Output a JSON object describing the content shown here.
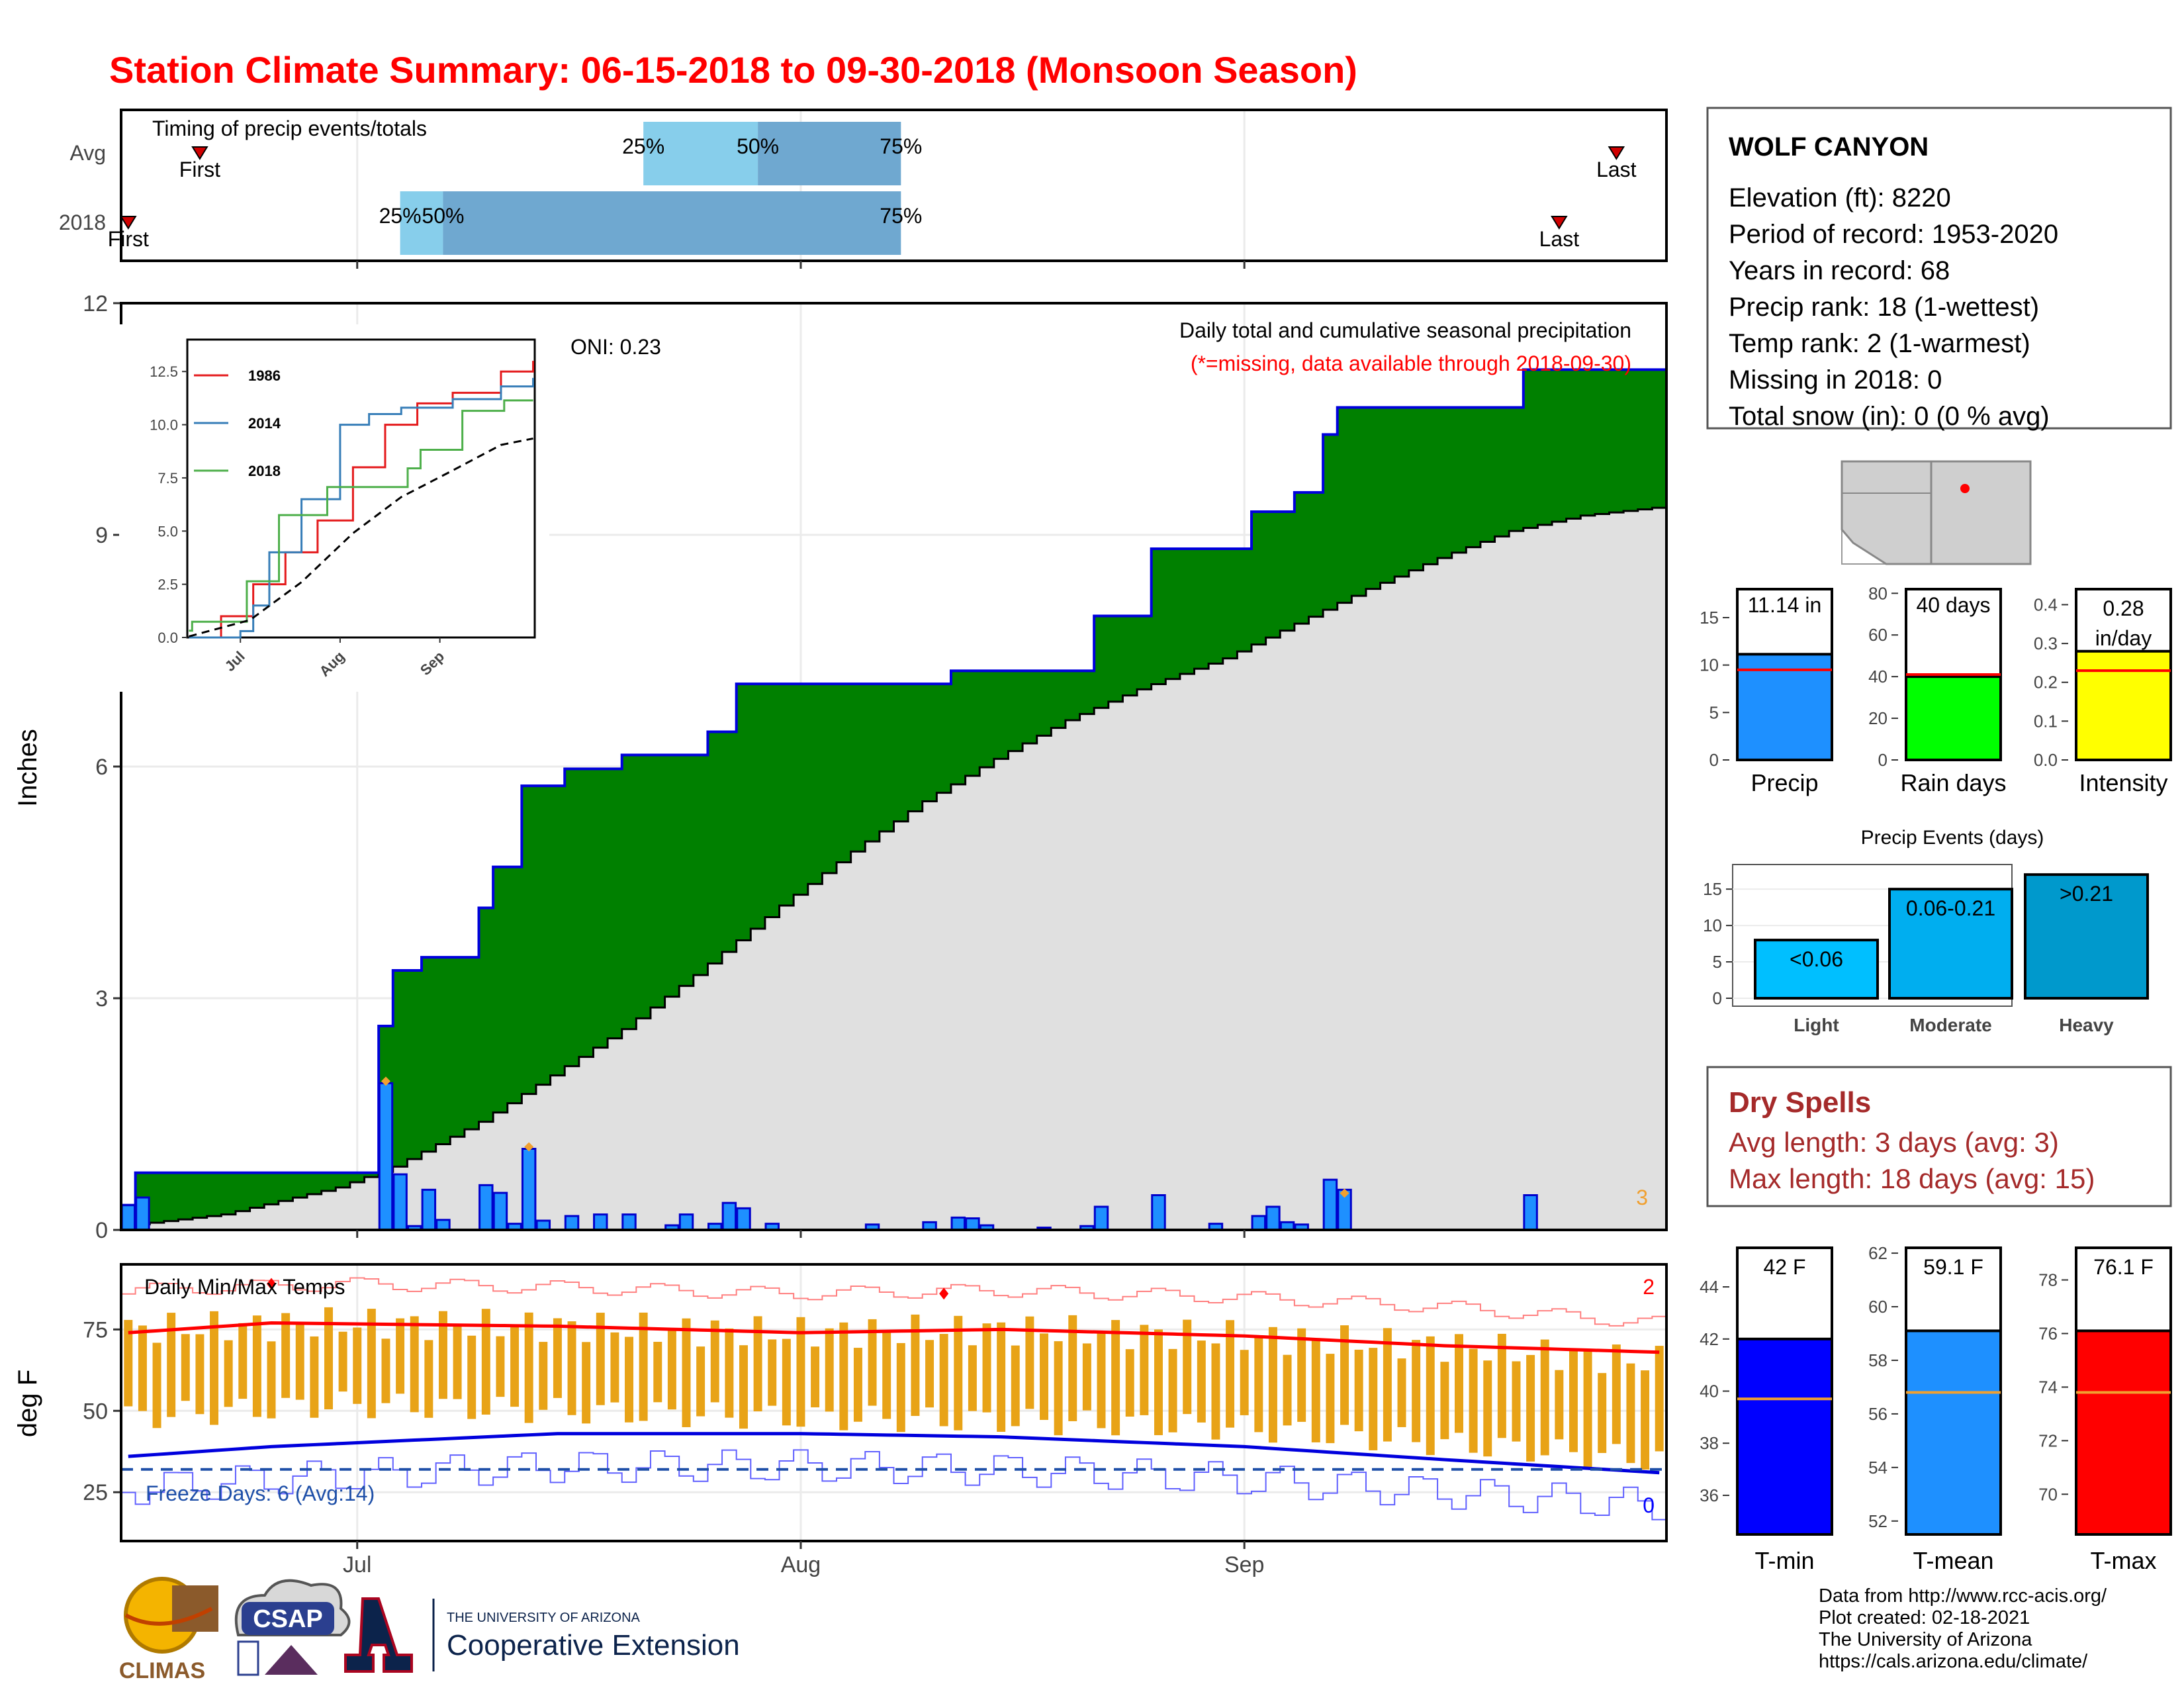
{
  "title": "Station Climate Summary: 06-15-2018 to 09-30-2018 (Monsoon Season)",
  "colors": {
    "title": "#ff0000",
    "green": "#008000",
    "bar": "#1e90ff",
    "gray": "#e0e0e0",
    "orange": "#e8a317",
    "dryspell": "#a52a2a",
    "light_blue": "#87ceeb",
    "mid_blue": "#6fa8d0"
  },
  "timing": {
    "label": "Timing of precip events/totals",
    "rows": [
      {
        "name": "Avg",
        "first_label": "First",
        "last_label": "Last",
        "p25": "25%",
        "p50": "50%",
        "p75": "75%",
        "first": "2018-06-20",
        "d25": "2018-07-21",
        "d50": "2018-07-29",
        "d75": "2018-08-08",
        "last": "2018-09-27"
      },
      {
        "name": "2018",
        "first_label": "First",
        "last_label": "Last",
        "p25": "25%",
        "p50": "50%",
        "p75": "75%",
        "first": "2018-06-15",
        "d25": "2018-07-04",
        "d50": "2018-07-07",
        "d75": "2018-08-08",
        "last": "2018-09-23"
      }
    ]
  },
  "x_axis": {
    "ticks": [
      "Jul",
      "Aug",
      "Sep"
    ]
  },
  "precip_panel": {
    "ylabel": "Inches",
    "annotation": "Daily total and cumulative seasonal precipitation",
    "missing_note": "(*=missing, data available through 2018-09-30)",
    "oni": "ONI: 0.23",
    "corner_count": "3"
  },
  "inset": {
    "y_ticks": [
      "0.0",
      "2.5",
      "5.0",
      "7.5",
      "10.0",
      "12.5"
    ],
    "x_ticks": [
      "Jul",
      "Aug",
      "Sep"
    ],
    "legend": [
      {
        "name": "1986",
        "color": "#e41a1c"
      },
      {
        "name": "2014",
        "color": "#377eb8"
      },
      {
        "name": "2018",
        "color": "#4daf4a"
      }
    ]
  },
  "temp_panel": {
    "ylabel": "deg F",
    "label": "Daily Min/Max Temps",
    "freeze": "Freeze Days: 6 (Avg:14)",
    "corner_max": "2",
    "corner_min": "0"
  },
  "station": {
    "name": "WOLF CANYON",
    "lines": [
      "Elevation (ft): 8220",
      "Period of record: 1953-2020",
      "Years in record: 68",
      "Precip rank: 18 (1-wettest)",
      "Temp rank: 2 (1-warmest)",
      "Missing in 2018: 0",
      "Total snow (in): 0 (0 % avg)"
    ]
  },
  "summary_bars": [
    {
      "label": "Precip",
      "value_text": "11.14 in",
      "color": "#1e90ff",
      "value": 11.14,
      "avg": 9.5,
      "ymax": 18,
      "ticks": [
        "0",
        "5",
        "10",
        "15"
      ]
    },
    {
      "label": "Rain days",
      "value_text": "40 days",
      "color": "#00ff00",
      "value": 40,
      "avg": 41,
      "ymax": 82,
      "ticks": [
        "0",
        "20",
        "40",
        "60",
        "80"
      ]
    },
    {
      "label": "Intensity",
      "value_text": "0.28 in/day",
      "color": "#ffff00",
      "value": 0.28,
      "avg": 0.23,
      "ymax": 0.44,
      "ticks": [
        "0.0",
        "0.1",
        "0.2",
        "0.3",
        "0.4"
      ]
    }
  ],
  "precip_events": {
    "title": "Precip Events (days)",
    "ticks": [
      "0",
      "5",
      "10",
      "15"
    ],
    "bars": [
      {
        "category": "Light",
        "label": "<0.06",
        "value": 8,
        "color": "#00bfff"
      },
      {
        "category": "Moderate",
        "label": "0.06-0.21",
        "value": 15,
        "color": "#00aeef"
      },
      {
        "category": "Heavy",
        "label": ">0.21",
        "value": 17,
        "color": "#0099cc"
      }
    ]
  },
  "dry_spells": {
    "title": "Dry Spells",
    "avg_line": "Avg length: 3 days (avg: 3)",
    "max_line": "Max length: 18 days (avg: 15)"
  },
  "temp_bars": [
    {
      "label": "T-min",
      "value_text": "42 F",
      "color": "#0000ff",
      "value": 42,
      "avg": 39.7,
      "ymin": 34.5,
      "ymax": 45.5,
      "ticks": [
        "36",
        "38",
        "40",
        "42",
        "44"
      ]
    },
    {
      "label": "T-mean",
      "value_text": "59.1 F",
      "color": "#1e90ff",
      "value": 59.1,
      "avg": 56.8,
      "ymin": 51.5,
      "ymax": 62.2,
      "ticks": [
        "52",
        "54",
        "56",
        "58",
        "60",
        "62"
      ]
    },
    {
      "label": "T-max",
      "value_text": "76.1 F",
      "color": "#ff0000",
      "value": 76.1,
      "avg": 73.8,
      "ymin": 68.5,
      "ymax": 79.2,
      "ticks": [
        "70",
        "72",
        "74",
        "76",
        "78"
      ]
    }
  ],
  "credits": [
    "Data from http://www.rcc-acis.org/",
    "Plot created: 02-18-2021",
    "The University of Arizona",
    "https://cals.arizona.edu/climate/"
  ],
  "logos": {
    "climas": "CLIMAS",
    "csap": "CSAP",
    "uofa_small": "THE UNIVERSITY OF ARIZONA",
    "uofa_big": "Cooperative Extension"
  },
  "chart_data": {
    "type": "bar",
    "title": "Station Climate Summary: 06-15-2018 to 09-30-2018 (Monsoon Season)",
    "ylabel": "Inches",
    "ylim": [
      0,
      12
    ],
    "xlim": [
      "2018-06-15",
      "2018-09-30"
    ],
    "series": [
      {
        "name": "Daily precip",
        "points": [
          [
            "2018-06-15",
            0.32
          ],
          [
            "2018-06-16",
            0.42
          ],
          [
            "2018-07-03",
            1.9
          ],
          [
            "2018-07-04",
            0.72
          ],
          [
            "2018-07-05",
            0.05
          ],
          [
            "2018-07-06",
            0.52
          ],
          [
            "2018-07-07",
            0.13
          ],
          [
            "2018-07-10",
            0.58
          ],
          [
            "2018-07-11",
            0.48
          ],
          [
            "2018-07-12",
            0.08
          ],
          [
            "2018-07-13",
            1.05
          ],
          [
            "2018-07-14",
            0.12
          ],
          [
            "2018-07-16",
            0.18
          ],
          [
            "2018-07-18",
            0.2
          ],
          [
            "2018-07-20",
            0.2
          ],
          [
            "2018-07-23",
            0.06
          ],
          [
            "2018-07-24",
            0.2
          ],
          [
            "2018-07-26",
            0.08
          ],
          [
            "2018-07-27",
            0.35
          ],
          [
            "2018-07-28",
            0.28
          ],
          [
            "2018-07-30",
            0.08
          ],
          [
            "2018-08-06",
            0.07
          ],
          [
            "2018-08-10",
            0.1
          ],
          [
            "2018-08-12",
            0.16
          ],
          [
            "2018-08-13",
            0.15
          ],
          [
            "2018-08-14",
            0.06
          ],
          [
            "2018-08-18",
            0.03
          ],
          [
            "2018-08-21",
            0.05
          ],
          [
            "2018-08-22",
            0.3
          ],
          [
            "2018-08-26",
            0.45
          ],
          [
            "2018-08-30",
            0.08
          ],
          [
            "2018-09-02",
            0.18
          ],
          [
            "2018-09-03",
            0.3
          ],
          [
            "2018-09-04",
            0.1
          ],
          [
            "2018-09-05",
            0.07
          ],
          [
            "2018-09-07",
            0.65
          ],
          [
            "2018-09-08",
            0.52
          ],
          [
            "2018-09-21",
            0.45
          ]
        ]
      },
      {
        "name": "Cumulative 2018",
        "points": [
          [
            "2018-06-15",
            0.32
          ],
          [
            "2018-06-16",
            0.74
          ],
          [
            "2018-07-03",
            2.64
          ],
          [
            "2018-07-04",
            3.36
          ],
          [
            "2018-07-06",
            3.53
          ],
          [
            "2018-07-10",
            4.17
          ],
          [
            "2018-07-11",
            4.7
          ],
          [
            "2018-07-13",
            5.75
          ],
          [
            "2018-07-16",
            5.97
          ],
          [
            "2018-07-20",
            6.15
          ],
          [
            "2018-07-26",
            6.45
          ],
          [
            "2018-07-28",
            7.07
          ],
          [
            "2018-08-12",
            7.24
          ],
          [
            "2018-08-22",
            7.95
          ],
          [
            "2018-08-26",
            8.82
          ],
          [
            "2018-09-02",
            9.3
          ],
          [
            "2018-09-05",
            9.55
          ],
          [
            "2018-09-07",
            10.3
          ],
          [
            "2018-09-08",
            10.65
          ],
          [
            "2018-09-21",
            11.14
          ],
          [
            "2018-09-30",
            11.14
          ]
        ]
      },
      {
        "name": "Cumulative average",
        "points": [
          [
            "2018-06-15",
            0.05
          ],
          [
            "2018-06-22",
            0.2
          ],
          [
            "2018-06-30",
            0.55
          ],
          [
            "2018-07-04",
            0.82
          ],
          [
            "2018-07-10",
            1.4
          ],
          [
            "2018-07-15",
            2.0
          ],
          [
            "2018-07-20",
            2.6
          ],
          [
            "2018-07-25",
            3.3
          ],
          [
            "2018-07-31",
            4.2
          ],
          [
            "2018-08-05",
            4.9
          ],
          [
            "2018-08-10",
            5.55
          ],
          [
            "2018-08-15",
            6.1
          ],
          [
            "2018-08-20",
            6.6
          ],
          [
            "2018-08-25",
            7.0
          ],
          [
            "2018-08-31",
            7.4
          ],
          [
            "2018-09-05",
            7.85
          ],
          [
            "2018-09-10",
            8.3
          ],
          [
            "2018-09-15",
            8.7
          ],
          [
            "2018-09-20",
            9.05
          ],
          [
            "2018-09-25",
            9.25
          ],
          [
            "2018-09-30",
            9.35
          ]
        ]
      },
      {
        "name": "Daily max temp",
        "points": [
          [
            "2018-06-15",
            75
          ],
          [
            "2018-06-30",
            77
          ],
          [
            "2018-07-15",
            76
          ],
          [
            "2018-07-31",
            74
          ],
          [
            "2018-08-15",
            75
          ],
          [
            "2018-08-31",
            73
          ],
          [
            "2018-09-15",
            70
          ],
          [
            "2018-09-30",
            65
          ]
        ]
      },
      {
        "name": "Daily min temp",
        "points": [
          [
            "2018-06-15",
            48
          ],
          [
            "2018-06-30",
            52
          ],
          [
            "2018-07-15",
            50
          ],
          [
            "2018-07-31",
            48
          ],
          [
            "2018-08-15",
            47
          ],
          [
            "2018-08-31",
            45
          ],
          [
            "2018-09-15",
            40
          ],
          [
            "2018-09-30",
            35
          ]
        ]
      },
      {
        "name": "Avg max temp",
        "points": [
          [
            "2018-06-15",
            74
          ],
          [
            "2018-06-25",
            77
          ],
          [
            "2018-07-15",
            76
          ],
          [
            "2018-08-01",
            74
          ],
          [
            "2018-08-15",
            75
          ],
          [
            "2018-09-01",
            73
          ],
          [
            "2018-09-15",
            70
          ],
          [
            "2018-09-30",
            68
          ]
        ]
      },
      {
        "name": "Avg min temp",
        "points": [
          [
            "2018-06-15",
            36
          ],
          [
            "2018-06-25",
            39
          ],
          [
            "2018-07-15",
            43
          ],
          [
            "2018-08-01",
            43
          ],
          [
            "2018-08-15",
            42
          ],
          [
            "2018-09-01",
            39
          ],
          [
            "2018-09-15",
            35
          ],
          [
            "2018-09-30",
            31
          ]
        ]
      }
    ],
    "inset_series": [
      {
        "name": "1986",
        "points": [
          [
            "2018-06-15",
            0
          ],
          [
            "2018-06-25",
            1
          ],
          [
            "2018-07-05",
            2.5
          ],
          [
            "2018-07-15",
            4
          ],
          [
            "2018-07-25",
            5.5
          ],
          [
            "2018-08-05",
            8
          ],
          [
            "2018-08-15",
            10
          ],
          [
            "2018-08-25",
            11
          ],
          [
            "2018-09-05",
            11.5
          ],
          [
            "2018-09-20",
            12.5
          ],
          [
            "2018-09-30",
            13
          ]
        ]
      },
      {
        "name": "2014",
        "points": [
          [
            "2018-06-15",
            0
          ],
          [
            "2018-07-01",
            0.3
          ],
          [
            "2018-07-05",
            1.5
          ],
          [
            "2018-07-10",
            4
          ],
          [
            "2018-07-20",
            6.5
          ],
          [
            "2018-08-01",
            10
          ],
          [
            "2018-08-10",
            10.5
          ],
          [
            "2018-08-20",
            10.8
          ],
          [
            "2018-09-05",
            11.2
          ],
          [
            "2018-09-20",
            11.8
          ],
          [
            "2018-09-30",
            12.2
          ]
        ]
      },
      {
        "name": "2018",
        "points": [
          [
            "2018-06-15",
            0.32
          ],
          [
            "2018-06-16",
            0.74
          ],
          [
            "2018-07-03",
            2.64
          ],
          [
            "2018-07-13",
            5.75
          ],
          [
            "2018-07-28",
            7.07
          ],
          [
            "2018-08-22",
            7.95
          ],
          [
            "2018-08-26",
            8.82
          ],
          [
            "2018-09-08",
            10.65
          ],
          [
            "2018-09-21",
            11.14
          ],
          [
            "2018-09-30",
            11.14
          ]
        ]
      },
      {
        "name": "Average",
        "points": [
          [
            "2018-06-15",
            0.05
          ],
          [
            "2018-07-04",
            0.82
          ],
          [
            "2018-07-20",
            2.6
          ],
          [
            "2018-08-05",
            4.9
          ],
          [
            "2018-08-20",
            6.6
          ],
          [
            "2018-09-05",
            7.85
          ],
          [
            "2018-09-20",
            9.05
          ],
          [
            "2018-09-30",
            9.35
          ]
        ]
      }
    ]
  }
}
